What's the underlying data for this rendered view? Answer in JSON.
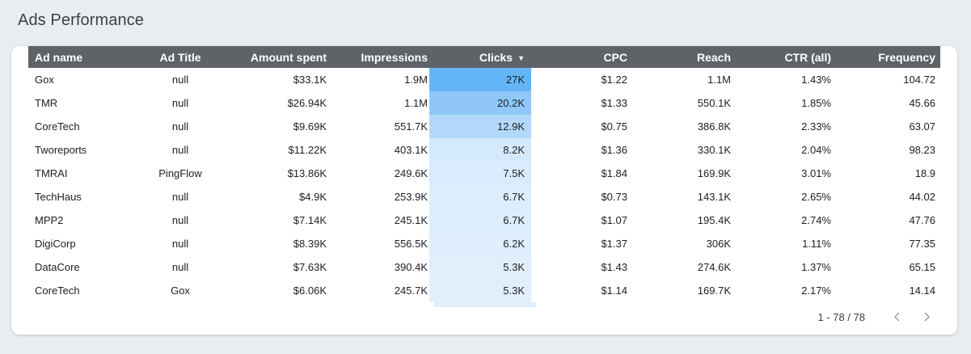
{
  "page": {
    "title": "Ads Performance"
  },
  "table": {
    "columns": [
      "Ad name",
      "Ad Title",
      "Amount spent",
      "Impressions",
      "Clicks",
      "CPC",
      "Reach",
      "CTR (all)",
      "Frequency"
    ],
    "sorted_column": "Clicks",
    "sort_direction": "descending",
    "heatmap_colors": {
      "27K": "#64b5f6",
      "20.2K": "#8fc8f8",
      "12.9K": "#b3d9fa",
      "8.2K": "#d5e9fc",
      "7.5K": "#d9ebfc",
      "6.7K": "#dcedfd",
      "6.2K": "#deeefd",
      "5.3K": "#e1effd"
    },
    "rows": [
      {
        "ad_name": "Gox",
        "ad_title": "null",
        "amount_spent": "$33.1K",
        "impressions": "1.9M",
        "clicks": "27K",
        "cpc": "$1.22",
        "reach": "1.1M",
        "ctr": "1.43%",
        "frequency": "104.72"
      },
      {
        "ad_name": "TMR",
        "ad_title": "null",
        "amount_spent": "$26.94K",
        "impressions": "1.1M",
        "clicks": "20.2K",
        "cpc": "$1.33",
        "reach": "550.1K",
        "ctr": "1.85%",
        "frequency": "45.66"
      },
      {
        "ad_name": "CoreTech",
        "ad_title": "null",
        "amount_spent": "$9.69K",
        "impressions": "551.7K",
        "clicks": "12.9K",
        "cpc": "$0.75",
        "reach": "386.8K",
        "ctr": "2.33%",
        "frequency": "63.07"
      },
      {
        "ad_name": "Tworeports",
        "ad_title": "null",
        "amount_spent": "$11.22K",
        "impressions": "403.1K",
        "clicks": "8.2K",
        "cpc": "$1.36",
        "reach": "330.1K",
        "ctr": "2.04%",
        "frequency": "98.23"
      },
      {
        "ad_name": "TMRAI",
        "ad_title": "PingFlow",
        "amount_spent": "$13.86K",
        "impressions": "249.6K",
        "clicks": "7.5K",
        "cpc": "$1.84",
        "reach": "169.9K",
        "ctr": "3.01%",
        "frequency": "18.9"
      },
      {
        "ad_name": "TechHaus",
        "ad_title": "null",
        "amount_spent": "$4.9K",
        "impressions": "253.9K",
        "clicks": "6.7K",
        "cpc": "$0.73",
        "reach": "143.1K",
        "ctr": "2.65%",
        "frequency": "44.02"
      },
      {
        "ad_name": "MPP2",
        "ad_title": "null",
        "amount_spent": "$7.14K",
        "impressions": "245.1K",
        "clicks": "6.7K",
        "cpc": "$1.07",
        "reach": "195.4K",
        "ctr": "2.74%",
        "frequency": "47.76"
      },
      {
        "ad_name": "DigiCorp",
        "ad_title": "null",
        "amount_spent": "$8.39K",
        "impressions": "556.5K",
        "clicks": "6.2K",
        "cpc": "$1.37",
        "reach": "306K",
        "ctr": "1.11%",
        "frequency": "77.35"
      },
      {
        "ad_name": "DataCore",
        "ad_title": "null",
        "amount_spent": "$7.63K",
        "impressions": "390.4K",
        "clicks": "5.3K",
        "cpc": "$1.43",
        "reach": "274.6K",
        "ctr": "1.37%",
        "frequency": "65.15"
      },
      {
        "ad_name": "CoreTech",
        "ad_title": "Gox",
        "amount_spent": "$6.06K",
        "impressions": "245.7K",
        "clicks": "5.3K",
        "cpc": "$1.14",
        "reach": "169.7K",
        "ctr": "2.17%",
        "frequency": "14.14"
      }
    ]
  },
  "pagination": {
    "label": "1 - 78 / 78",
    "prev_icon": "chevron-left-icon",
    "next_icon": "chevron-right-icon"
  },
  "colors": {
    "background": "#e9edf1",
    "header_bg": "#5f6368",
    "clicks_max": "#64b5f6"
  }
}
